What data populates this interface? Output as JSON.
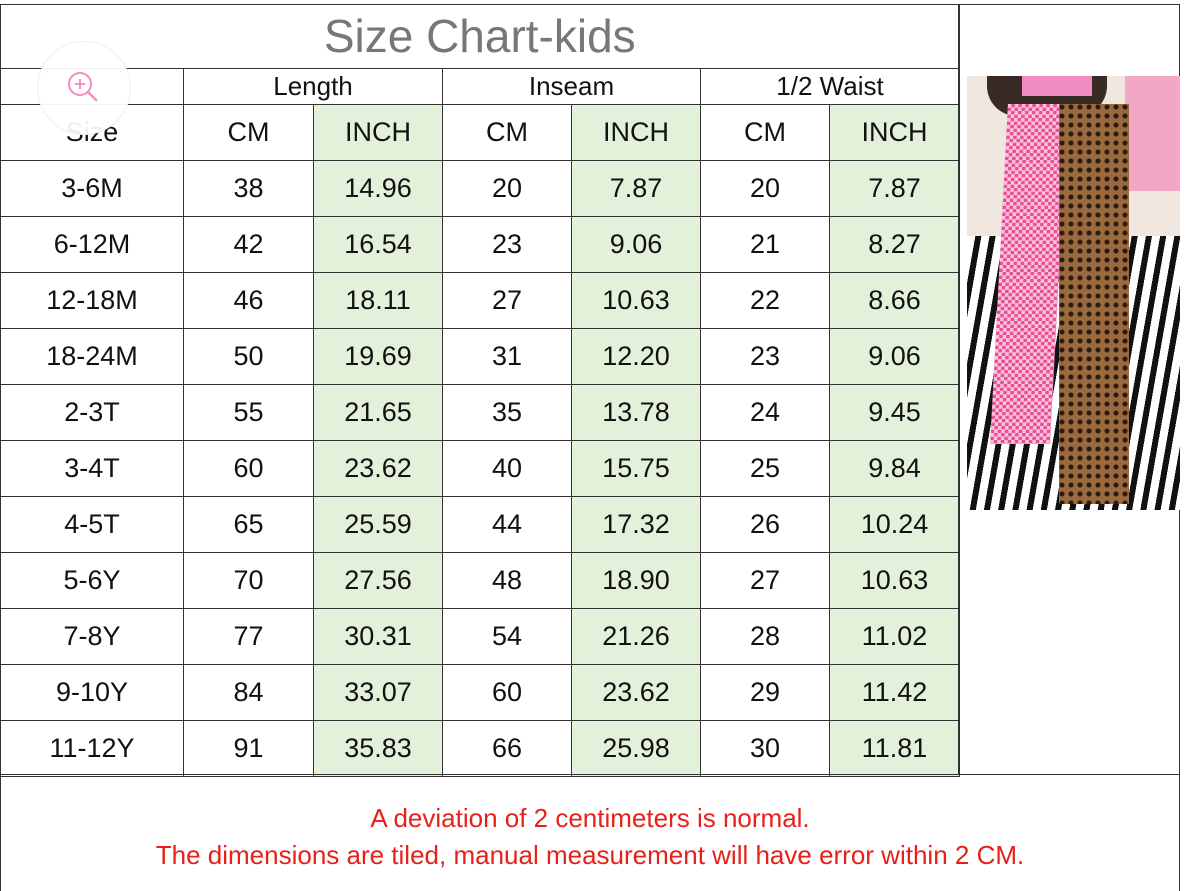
{
  "title": "Size Chart-kids",
  "groups": [
    "Length",
    "Inseam",
    "1/2 Waist"
  ],
  "size_header": "Size",
  "units": [
    "CM",
    "INCH"
  ],
  "rows": [
    [
      "3-6M",
      "38",
      "14.96",
      "20",
      "7.87",
      "20",
      "7.87"
    ],
    [
      "6-12M",
      "42",
      "16.54",
      "23",
      "9.06",
      "21",
      "8.27"
    ],
    [
      "12-18M",
      "46",
      "18.11",
      "27",
      "10.63",
      "22",
      "8.66"
    ],
    [
      "18-24M",
      "50",
      "19.69",
      "31",
      "12.20",
      "23",
      "9.06"
    ],
    [
      "2-3T",
      "55",
      "21.65",
      "35",
      "13.78",
      "24",
      "9.45"
    ],
    [
      "3-4T",
      "60",
      "23.62",
      "40",
      "15.75",
      "25",
      "9.84"
    ],
    [
      "4-5T",
      "65",
      "25.59",
      "44",
      "17.32",
      "26",
      "10.24"
    ],
    [
      "5-6Y",
      "70",
      "27.56",
      "48",
      "18.90",
      "27",
      "10.63"
    ],
    [
      "7-8Y",
      "77",
      "30.31",
      "54",
      "21.26",
      "28",
      "11.02"
    ],
    [
      "9-10Y",
      "84",
      "33.07",
      "60",
      "23.62",
      "29",
      "11.42"
    ],
    [
      "11-12Y",
      "91",
      "35.83",
      "66",
      "25.98",
      "30",
      "11.81"
    ]
  ],
  "notes": [
    "A deviation of 2 centimeters is normal.",
    "The dimensions are tiled, manual measurement will have error within 2 CM."
  ],
  "colors": {
    "inch_bg": "#e3f1da",
    "note": "#e8201a",
    "title": "#777777",
    "zoom_icon": "#f48fc0"
  },
  "icons": {
    "zoom": "zoom-in-icon"
  }
}
